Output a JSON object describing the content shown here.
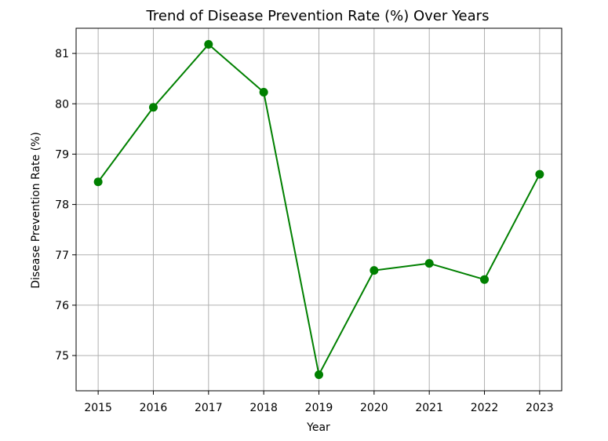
{
  "chart_data": {
    "type": "line",
    "title": "Trend of Disease Prevention Rate (%) Over Years",
    "xlabel": "Year",
    "ylabel": "Disease Prevention Rate (%)",
    "x": [
      2015,
      2016,
      2017,
      2018,
      2019,
      2020,
      2021,
      2022,
      2023
    ],
    "x_tick_labels": [
      "2015",
      "2016",
      "2017",
      "2018",
      "2019",
      "2020",
      "2021",
      "2022",
      "2023"
    ],
    "y_ticks": [
      75,
      76,
      77,
      78,
      79,
      80,
      81
    ],
    "y_tick_labels": [
      "75",
      "76",
      "77",
      "78",
      "79",
      "80",
      "81"
    ],
    "xlim": [
      2014.6,
      2023.4
    ],
    "ylim": [
      74.3,
      81.5
    ],
    "grid": true,
    "series": [
      {
        "values": [
          78.45,
          79.93,
          81.18,
          80.23,
          74.62,
          76.69,
          76.83,
          76.51,
          78.6
        ],
        "color": "#008000",
        "marker": "circle"
      }
    ]
  }
}
